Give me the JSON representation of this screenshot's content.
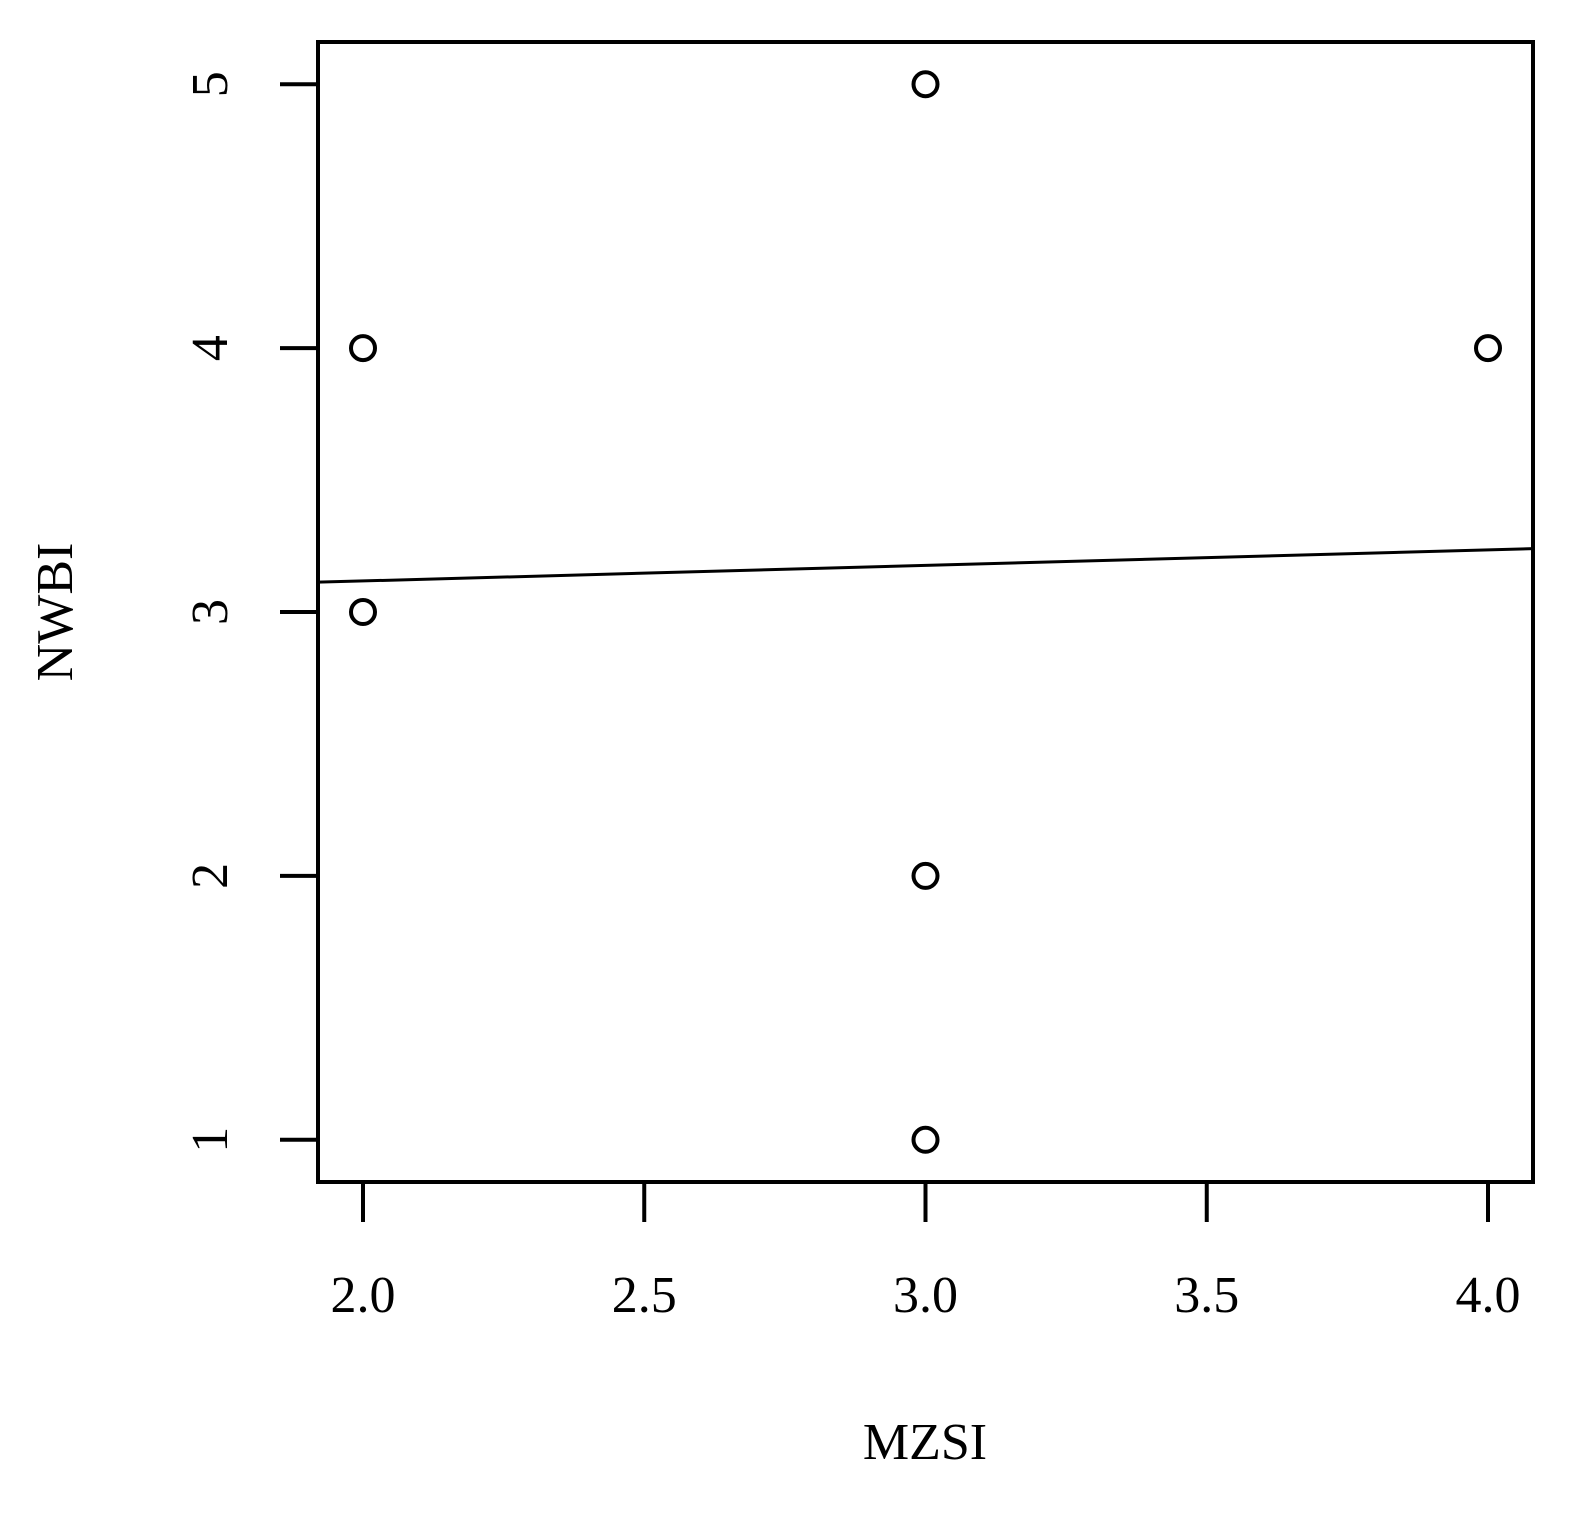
{
  "chart_data": {
    "type": "scatter",
    "x_label": "MZSI",
    "y_label": "NWBI",
    "series": [
      {
        "x": [
          2,
          2,
          3,
          3,
          3,
          4
        ],
        "values": [
          4,
          3,
          5,
          2,
          1,
          4
        ],
        "color": "#000000"
      }
    ],
    "trend_line": {
      "x": [
        1.92,
        4.08
      ],
      "y": [
        3.113,
        3.24
      ]
    },
    "xlim": [
      1.92,
      4.08
    ],
    "ylim": [
      0.84,
      5.16
    ],
    "xticks": [
      {
        "value": 2,
        "label": "2.0"
      },
      2.5,
      {
        "value": 3,
        "label": "3.0"
      },
      3.5,
      {
        "value": 4,
        "label": "4.0"
      }
    ],
    "yticks": [
      1,
      2,
      3,
      4,
      5
    ]
  }
}
